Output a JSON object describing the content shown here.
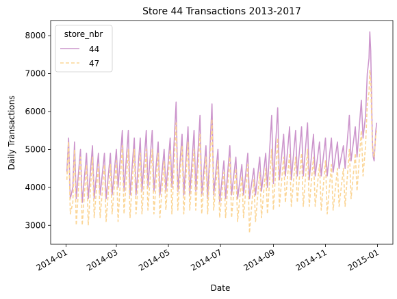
{
  "chart_data": {
    "type": "line",
    "title": "Store 44 Transactions 2013-2017",
    "xlabel": "Date",
    "ylabel": "Daily Transactions",
    "xlim": [
      "2013-12-14",
      "2015-01-19"
    ],
    "ylim": [
      2500,
      8400
    ],
    "x_ticks": [
      "2014-01",
      "2014-03",
      "2014-05",
      "2014-07",
      "2014-09",
      "2014-11",
      "2015-01"
    ],
    "y_ticks": [
      3000,
      4000,
      5000,
      6000,
      7000,
      8000
    ],
    "grid": false,
    "legend": {
      "title": "store_nbr",
      "placement": "top-left"
    },
    "series": [
      {
        "name": "44",
        "color": "#cc95cc",
        "style": "solid",
        "points": [
          [
            "2014-01-02",
            4400
          ],
          [
            "2014-01-04",
            5300
          ],
          [
            "2014-01-06",
            3700
          ],
          [
            "2014-01-09",
            4000
          ],
          [
            "2014-01-11",
            5200
          ],
          [
            "2014-01-13",
            3700
          ],
          [
            "2014-01-18",
            5000
          ],
          [
            "2014-01-20",
            3600
          ],
          [
            "2014-01-25",
            4900
          ],
          [
            "2014-01-27",
            3700
          ],
          [
            "2014-02-01",
            5100
          ],
          [
            "2014-02-03",
            3700
          ],
          [
            "2014-02-08",
            4900
          ],
          [
            "2014-02-10",
            3800
          ],
          [
            "2014-02-15",
            4900
          ],
          [
            "2014-02-17",
            3700
          ],
          [
            "2014-02-22",
            4900
          ],
          [
            "2014-02-24",
            3800
          ],
          [
            "2014-03-01",
            5000
          ],
          [
            "2014-03-03",
            4000
          ],
          [
            "2014-03-08",
            5500
          ],
          [
            "2014-03-10",
            3900
          ],
          [
            "2014-03-15",
            5500
          ],
          [
            "2014-03-17",
            3800
          ],
          [
            "2014-03-22",
            5300
          ],
          [
            "2014-03-24",
            3800
          ],
          [
            "2014-03-29",
            5300
          ],
          [
            "2014-03-31",
            3900
          ],
          [
            "2014-04-05",
            5500
          ],
          [
            "2014-04-07",
            4000
          ],
          [
            "2014-04-12",
            5500
          ],
          [
            "2014-04-14",
            3900
          ],
          [
            "2014-04-19",
            5200
          ],
          [
            "2014-04-21",
            3800
          ],
          [
            "2014-04-26",
            5000
          ],
          [
            "2014-04-28",
            3900
          ],
          [
            "2014-05-03",
            5300
          ],
          [
            "2014-05-05",
            4000
          ],
          [
            "2014-05-10",
            6250
          ],
          [
            "2014-05-12",
            3900
          ],
          [
            "2014-05-17",
            5400
          ],
          [
            "2014-05-19",
            3800
          ],
          [
            "2014-05-24",
            5600
          ],
          [
            "2014-05-26",
            3800
          ],
          [
            "2014-05-31",
            5500
          ],
          [
            "2014-06-02",
            3900
          ],
          [
            "2014-06-07",
            5900
          ],
          [
            "2014-06-09",
            3800
          ],
          [
            "2014-06-14",
            5100
          ],
          [
            "2014-06-16",
            3700
          ],
          [
            "2014-06-21",
            6200
          ],
          [
            "2014-06-23",
            3800
          ],
          [
            "2014-06-28",
            5000
          ],
          [
            "2014-06-30",
            3600
          ],
          [
            "2014-07-05",
            4700
          ],
          [
            "2014-07-07",
            3700
          ],
          [
            "2014-07-12",
            5100
          ],
          [
            "2014-07-14",
            3800
          ],
          [
            "2014-07-19",
            4800
          ],
          [
            "2014-07-21",
            3700
          ],
          [
            "2014-07-26",
            4600
          ],
          [
            "2014-07-28",
            3800
          ],
          [
            "2014-08-02",
            4900
          ],
          [
            "2014-08-04",
            3700
          ],
          [
            "2014-08-09",
            4500
          ],
          [
            "2014-08-11",
            3800
          ],
          [
            "2014-08-16",
            4800
          ],
          [
            "2014-08-18",
            3900
          ],
          [
            "2014-08-23",
            4900
          ],
          [
            "2014-08-25",
            4000
          ],
          [
            "2014-08-30",
            5900
          ],
          [
            "2014-09-01",
            4100
          ],
          [
            "2014-09-06",
            6100
          ],
          [
            "2014-09-08",
            4200
          ],
          [
            "2014-09-13",
            5400
          ],
          [
            "2014-09-15",
            4300
          ],
          [
            "2014-09-20",
            5600
          ],
          [
            "2014-09-22",
            4200
          ],
          [
            "2014-09-27",
            5500
          ],
          [
            "2014-09-29",
            4300
          ],
          [
            "2014-10-04",
            5600
          ],
          [
            "2014-10-06",
            4300
          ],
          [
            "2014-10-11",
            5700
          ],
          [
            "2014-10-13",
            4200
          ],
          [
            "2014-10-18",
            5400
          ],
          [
            "2014-10-20",
            4300
          ],
          [
            "2014-10-25",
            5200
          ],
          [
            "2014-10-27",
            4300
          ],
          [
            "2014-11-01",
            5300
          ],
          [
            "2014-11-03",
            4300
          ],
          [
            "2014-11-08",
            5300
          ],
          [
            "2014-11-10",
            4400
          ],
          [
            "2014-11-15",
            5200
          ],
          [
            "2014-11-17",
            4500
          ],
          [
            "2014-11-22",
            5100
          ],
          [
            "2014-11-24",
            4500
          ],
          [
            "2014-11-29",
            5900
          ],
          [
            "2014-12-01",
            4700
          ],
          [
            "2014-12-06",
            5600
          ],
          [
            "2014-12-08",
            4800
          ],
          [
            "2014-12-13",
            6300
          ],
          [
            "2014-12-15",
            5300
          ],
          [
            "2014-12-18",
            5900
          ],
          [
            "2014-12-20",
            7000
          ],
          [
            "2014-12-22",
            7400
          ],
          [
            "2014-12-23",
            8100
          ],
          [
            "2014-12-24",
            7600
          ],
          [
            "2014-12-26",
            5200
          ],
          [
            "2014-12-27",
            4800
          ],
          [
            "2014-12-28",
            4700
          ],
          [
            "2014-12-30",
            5500
          ],
          [
            "2014-12-31",
            5700
          ]
        ]
      },
      {
        "name": "47",
        "color": "#fbd595",
        "style": "dashed",
        "points": [
          [
            "2014-01-02",
            4200
          ],
          [
            "2014-01-04",
            5200
          ],
          [
            "2014-01-06",
            3300
          ],
          [
            "2014-01-09",
            3600
          ],
          [
            "2014-01-11",
            5000
          ],
          [
            "2014-01-13",
            3000
          ],
          [
            "2014-01-18",
            4800
          ],
          [
            "2014-01-20",
            3000
          ],
          [
            "2014-01-25",
            4600
          ],
          [
            "2014-01-27",
            3000
          ],
          [
            "2014-02-01",
            4800
          ],
          [
            "2014-02-03",
            3200
          ],
          [
            "2014-02-08",
            4600
          ],
          [
            "2014-02-10",
            3200
          ],
          [
            "2014-02-15",
            4600
          ],
          [
            "2014-02-17",
            3100
          ],
          [
            "2014-02-22",
            4600
          ],
          [
            "2014-02-24",
            3300
          ],
          [
            "2014-03-01",
            4700
          ],
          [
            "2014-03-03",
            3100
          ],
          [
            "2014-03-08",
            5100
          ],
          [
            "2014-03-10",
            3300
          ],
          [
            "2014-03-15",
            5000
          ],
          [
            "2014-03-17",
            3200
          ],
          [
            "2014-03-22",
            5000
          ],
          [
            "2014-03-24",
            3300
          ],
          [
            "2014-03-29",
            4900
          ],
          [
            "2014-03-31",
            3300
          ],
          [
            "2014-04-05",
            5000
          ],
          [
            "2014-04-07",
            3400
          ],
          [
            "2014-04-12",
            5000
          ],
          [
            "2014-04-14",
            3300
          ],
          [
            "2014-04-19",
            4900
          ],
          [
            "2014-04-21",
            3200
          ],
          [
            "2014-04-26",
            4700
          ],
          [
            "2014-04-28",
            3400
          ],
          [
            "2014-05-03",
            5000
          ],
          [
            "2014-05-05",
            3300
          ],
          [
            "2014-05-10",
            5700
          ],
          [
            "2014-05-12",
            3400
          ],
          [
            "2014-05-17",
            5100
          ],
          [
            "2014-05-19",
            3300
          ],
          [
            "2014-05-24",
            5200
          ],
          [
            "2014-05-26",
            3400
          ],
          [
            "2014-05-31",
            5000
          ],
          [
            "2014-06-02",
            3400
          ],
          [
            "2014-06-07",
            5400
          ],
          [
            "2014-06-09",
            3300
          ],
          [
            "2014-06-14",
            4800
          ],
          [
            "2014-06-16",
            3300
          ],
          [
            "2014-06-21",
            5800
          ],
          [
            "2014-06-23",
            3400
          ],
          [
            "2014-06-28",
            4700
          ],
          [
            "2014-06-30",
            3200
          ],
          [
            "2014-07-05",
            4400
          ],
          [
            "2014-07-07",
            3200
          ],
          [
            "2014-07-12",
            4800
          ],
          [
            "2014-07-14",
            3200
          ],
          [
            "2014-07-19",
            4500
          ],
          [
            "2014-07-21",
            3100
          ],
          [
            "2014-07-26",
            4300
          ],
          [
            "2014-07-28",
            3200
          ],
          [
            "2014-08-02",
            4600
          ],
          [
            "2014-08-04",
            2800
          ],
          [
            "2014-08-09",
            4200
          ],
          [
            "2014-08-11",
            3100
          ],
          [
            "2014-08-16",
            4400
          ],
          [
            "2014-08-18",
            3200
          ],
          [
            "2014-08-23",
            4500
          ],
          [
            "2014-08-25",
            3300
          ],
          [
            "2014-08-30",
            5000
          ],
          [
            "2014-09-01",
            3400
          ],
          [
            "2014-09-06",
            5300
          ],
          [
            "2014-09-08",
            3500
          ],
          [
            "2014-09-13",
            4800
          ],
          [
            "2014-09-15",
            3600
          ],
          [
            "2014-09-20",
            4900
          ],
          [
            "2014-09-22",
            3500
          ],
          [
            "2014-09-27",
            4800
          ],
          [
            "2014-09-29",
            3600
          ],
          [
            "2014-10-04",
            4900
          ],
          [
            "2014-10-06",
            3500
          ],
          [
            "2014-10-11",
            5000
          ],
          [
            "2014-10-13",
            3500
          ],
          [
            "2014-10-18",
            4800
          ],
          [
            "2014-10-20",
            3500
          ],
          [
            "2014-10-25",
            4600
          ],
          [
            "2014-10-27",
            3400
          ],
          [
            "2014-11-01",
            4700
          ],
          [
            "2014-11-03",
            3300
          ],
          [
            "2014-11-08",
            4600
          ],
          [
            "2014-11-10",
            3400
          ],
          [
            "2014-11-15",
            4500
          ],
          [
            "2014-11-17",
            3500
          ],
          [
            "2014-11-22",
            4500
          ],
          [
            "2014-11-24",
            3500
          ],
          [
            "2014-11-29",
            5000
          ],
          [
            "2014-12-01",
            3700
          ],
          [
            "2014-12-06",
            4900
          ],
          [
            "2014-12-08",
            3900
          ],
          [
            "2014-12-13",
            5500
          ],
          [
            "2014-12-15",
            4300
          ],
          [
            "2014-12-18",
            5100
          ],
          [
            "2014-12-20",
            6200
          ],
          [
            "2014-12-22",
            6500
          ],
          [
            "2014-12-23",
            7100
          ],
          [
            "2014-12-24",
            6800
          ],
          [
            "2014-12-26",
            5000
          ],
          [
            "2014-12-27",
            4900
          ],
          [
            "2014-12-28",
            4800
          ],
          [
            "2014-12-30",
            5400
          ],
          [
            "2014-12-31",
            5500
          ]
        ]
      }
    ]
  }
}
